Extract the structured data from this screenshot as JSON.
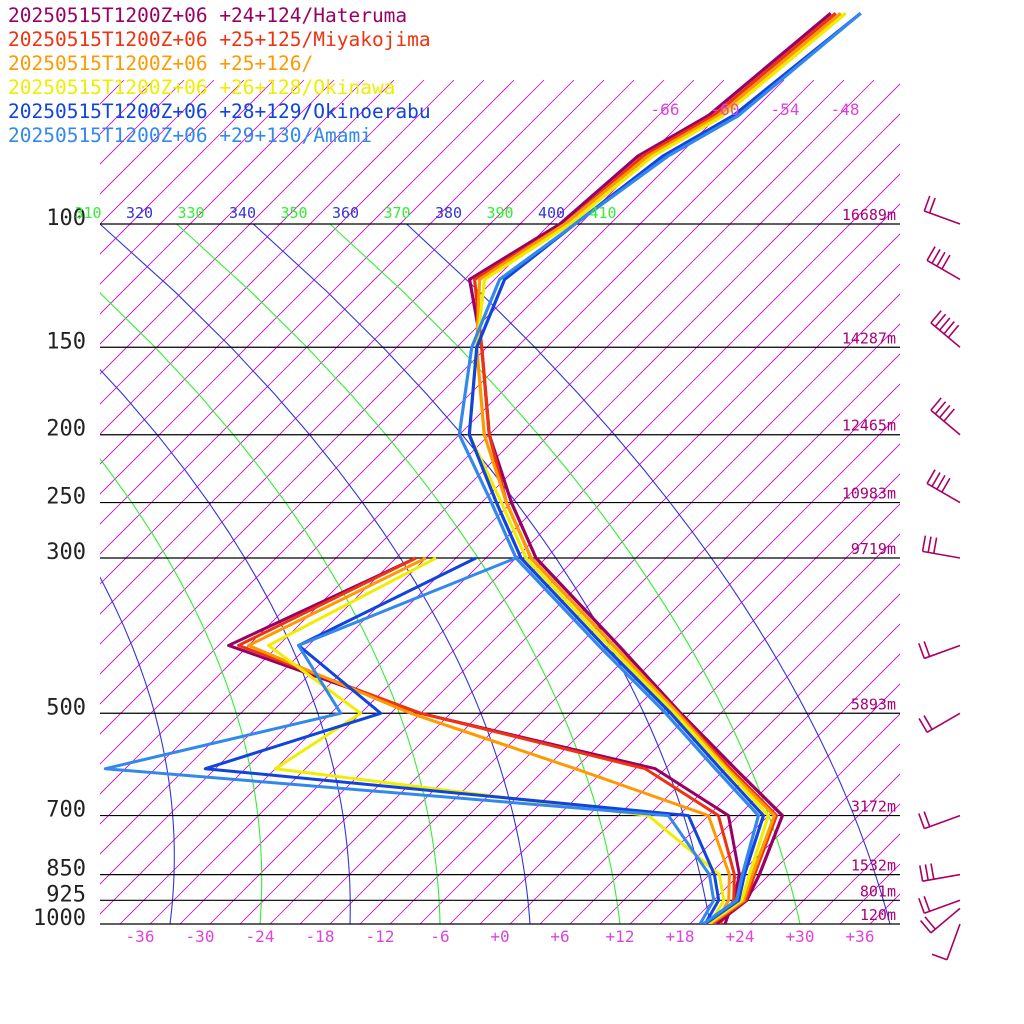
{
  "chart_data": {
    "type": "line",
    "ylabel_ticks": [
      "100",
      "150",
      "200",
      "250",
      "300",
      "500",
      "700",
      "850",
      "925",
      "1000"
    ],
    "x_ticks": [
      "-36",
      "-30",
      "-24",
      "-18",
      "-12",
      "-6",
      "+0",
      "+6",
      "+12",
      "+18",
      "+24",
      "+30",
      "+36"
    ],
    "xlim": [
      -40,
      40
    ],
    "ylim": [
      1000,
      100
    ],
    "y_scale": "log",
    "skew": "45deg",
    "height_labels": [
      {
        "p": 100,
        "label": "16689m"
      },
      {
        "p": 150,
        "label": "14287m"
      },
      {
        "p": 200,
        "label": "12465m"
      },
      {
        "p": 250,
        "label": "10983m"
      },
      {
        "p": 300,
        "label": "9719m"
      },
      {
        "p": 500,
        "label": "5893m"
      },
      {
        "p": 700,
        "label": "3172m"
      },
      {
        "p": 850,
        "label": "1532m"
      },
      {
        "p": 925,
        "label": "801m"
      },
      {
        "p": 1000,
        "label": "120m"
      }
    ],
    "mixing_ratio_labels": [
      "-66",
      "-60",
      "-54",
      "-48"
    ],
    "theta_e_labels": [
      {
        "label": "310",
        "color": "green"
      },
      {
        "label": "320",
        "color": "blue"
      },
      {
        "label": "330",
        "color": "green"
      },
      {
        "label": "340",
        "color": "blue"
      },
      {
        "label": "350",
        "color": "green"
      },
      {
        "label": "360",
        "color": "blue"
      },
      {
        "label": "370",
        "color": "green"
      },
      {
        "label": "380",
        "color": "blue"
      },
      {
        "label": "390",
        "color": "green"
      },
      {
        "label": "400",
        "color": "blue"
      },
      {
        "label": "410",
        "color": "green"
      }
    ],
    "colors": {
      "grid": "#000000",
      "skewT": "#cc00cc",
      "green": "#33ee33",
      "blue": "#3333dd",
      "label_magenta": "#dd44dd",
      "height_label": "#aa0077",
      "wind": "#aa0066"
    },
    "series": [
      {
        "name": "20250515T1200Z+06 +24+124/Hateruma",
        "color": "#990066",
        "points": [
          [
            1000,
            21.6
          ],
          [
            925,
            22.3
          ],
          [
            850,
            21.0
          ],
          [
            700,
            17.4
          ],
          [
            600,
            8
          ],
          [
            500,
            -3.0
          ],
          [
            400,
            -16
          ],
          [
            300,
            -33
          ],
          [
            250,
            -41
          ],
          [
            200,
            -50
          ],
          [
            150,
            -59.5
          ],
          [
            120,
            -67.5
          ],
          [
            100,
            -64
          ],
          [
            80,
            -63
          ],
          [
            70,
            -60
          ],
          [
            50,
            -58
          ]
        ]
      },
      {
        "name": "20250515T1200Z+06 +25+125/Miyakojima",
        "color": "#ee3311",
        "points": [
          [
            1000,
            21.2
          ],
          [
            925,
            22.2
          ],
          [
            850,
            20.5
          ],
          [
            700,
            16.8
          ],
          [
            600,
            7.5
          ],
          [
            500,
            -3.2
          ],
          [
            400,
            -16.5
          ],
          [
            300,
            -33.5
          ],
          [
            250,
            -41.5
          ],
          [
            200,
            -50
          ],
          [
            150,
            -59.5
          ],
          [
            120,
            -67
          ],
          [
            100,
            -63.5
          ],
          [
            80,
            -62.5
          ],
          [
            70,
            -59.5
          ],
          [
            50,
            -57.5
          ]
        ]
      },
      {
        "name": "20250515T1200Z+06 +25+126/",
        "color": "#ff9900",
        "points": [
          [
            1000,
            21.0
          ],
          [
            925,
            22.0
          ],
          [
            850,
            20.3
          ],
          [
            700,
            16.6
          ],
          [
            600,
            7.2
          ],
          [
            500,
            -3.3
          ],
          [
            400,
            -16.5
          ],
          [
            300,
            -33.5
          ],
          [
            250,
            -41.5
          ],
          [
            200,
            -50.5
          ],
          [
            150,
            -60
          ],
          [
            120,
            -66.5
          ],
          [
            100,
            -63.5
          ],
          [
            80,
            -62
          ],
          [
            70,
            -59
          ],
          [
            50,
            -57
          ]
        ]
      },
      {
        "name": "20250515T1200Z+06 +26+128/Okinawa",
        "color": "#eeee00",
        "points": [
          [
            1000,
            20.8
          ],
          [
            925,
            21.8
          ],
          [
            850,
            20.0
          ],
          [
            700,
            16.0
          ],
          [
            600,
            7.0
          ],
          [
            500,
            -3.6
          ],
          [
            400,
            -17
          ],
          [
            300,
            -34
          ],
          [
            250,
            -42
          ],
          [
            200,
            -52
          ],
          [
            150,
            -60
          ],
          [
            120,
            -66
          ],
          [
            100,
            -63
          ],
          [
            80,
            -61.5
          ],
          [
            70,
            -58.5
          ],
          [
            50,
            -56.5
          ]
        ]
      },
      {
        "name": "20250515T1200Z+06 +28+129/Okinoerabu",
        "color": "#1144dd",
        "points": [
          [
            1000,
            20.5
          ],
          [
            925,
            21.5
          ],
          [
            850,
            19.5
          ],
          [
            700,
            15.5
          ],
          [
            600,
            6.5
          ],
          [
            500,
            -4.0
          ],
          [
            400,
            -17.5
          ],
          [
            300,
            -34.5
          ],
          [
            250,
            -42.5
          ],
          [
            200,
            -52
          ],
          [
            150,
            -60
          ],
          [
            120,
            -64
          ],
          [
            100,
            -62.5
          ],
          [
            80,
            -60.5
          ],
          [
            70,
            -57.5
          ],
          [
            50,
            -55
          ]
        ]
      },
      {
        "name": "20250515T1200Z+06 +29+130/Amami",
        "color": "#3388ee",
        "points": [
          [
            1000,
            20.3
          ],
          [
            925,
            21.3
          ],
          [
            850,
            19.3
          ],
          [
            700,
            15.0
          ],
          [
            600,
            6.0
          ],
          [
            500,
            -4.5
          ],
          [
            400,
            -18
          ],
          [
            300,
            -35
          ],
          [
            250,
            -43
          ],
          [
            200,
            -53
          ],
          [
            150,
            -60.5
          ],
          [
            120,
            -64.5
          ],
          [
            100,
            -62.5
          ],
          [
            80,
            -60
          ],
          [
            70,
            -57
          ],
          [
            50,
            -55
          ]
        ]
      }
    ],
    "dewpoint_series": [
      {
        "color": "#990066",
        "points": [
          [
            1000,
            22.5
          ],
          [
            925,
            21
          ],
          [
            850,
            19
          ],
          [
            700,
            12
          ],
          [
            600,
            0
          ],
          [
            500,
            -29
          ],
          [
            400,
            -55
          ],
          [
            300,
            -45
          ]
        ]
      },
      {
        "color": "#ee3311",
        "points": [
          [
            1000,
            22
          ],
          [
            925,
            21
          ],
          [
            850,
            18.5
          ],
          [
            700,
            11
          ],
          [
            600,
            -1
          ],
          [
            500,
            -29
          ],
          [
            400,
            -54
          ],
          [
            300,
            -45
          ]
        ]
      },
      {
        "color": "#ff9900",
        "points": [
          [
            1000,
            21.5
          ],
          [
            925,
            20.5
          ],
          [
            850,
            18
          ],
          [
            700,
            10
          ],
          [
            600,
            -8
          ],
          [
            500,
            -30
          ],
          [
            400,
            -53
          ],
          [
            300,
            -44
          ]
        ]
      },
      {
        "color": "#eeee00",
        "points": [
          [
            1000,
            21
          ],
          [
            925,
            20
          ],
          [
            850,
            17
          ],
          [
            700,
            4
          ],
          [
            600,
            -38
          ],
          [
            500,
            -35
          ],
          [
            400,
            -51
          ],
          [
            300,
            -43
          ]
        ]
      },
      {
        "color": "#1144dd",
        "points": [
          [
            1000,
            20.5
          ],
          [
            925,
            19.5
          ],
          [
            850,
            16.5
          ],
          [
            700,
            8
          ],
          [
            600,
            -45
          ],
          [
            500,
            -33
          ],
          [
            400,
            -48
          ],
          [
            300,
            -39
          ]
        ]
      },
      {
        "color": "#3388ee",
        "points": [
          [
            1000,
            20
          ],
          [
            925,
            19
          ],
          [
            850,
            16
          ],
          [
            700,
            6
          ],
          [
            600,
            -55
          ],
          [
            500,
            -37
          ],
          [
            400,
            -48
          ],
          [
            300,
            -35
          ]
        ]
      }
    ],
    "wind_barbs": [
      {
        "p": 1000,
        "dir": 200,
        "speed": 10
      },
      {
        "p": 950,
        "dir": 230,
        "speed": 15
      },
      {
        "p": 925,
        "dir": 250,
        "speed": 20
      },
      {
        "p": 850,
        "dir": 260,
        "speed": 25
      },
      {
        "p": 700,
        "dir": 250,
        "speed": 20
      },
      {
        "p": 500,
        "dir": 240,
        "speed": 20
      },
      {
        "p": 400,
        "dir": 250,
        "speed": 15
      },
      {
        "p": 300,
        "dir": 280,
        "speed": 30
      },
      {
        "p": 250,
        "dir": 300,
        "speed": 40
      },
      {
        "p": 200,
        "dir": 310,
        "speed": 35
      },
      {
        "p": 150,
        "dir": 310,
        "speed": 45
      },
      {
        "p": 120,
        "dir": 300,
        "speed": 40
      },
      {
        "p": 100,
        "dir": 290,
        "speed": 20
      }
    ]
  }
}
